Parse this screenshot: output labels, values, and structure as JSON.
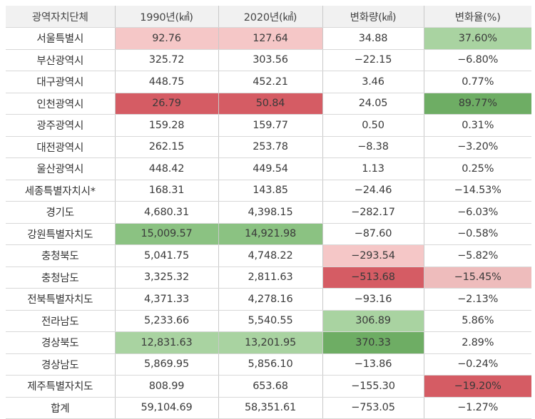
{
  "table": {
    "headers": [
      "광역자치단체",
      "1990년(㎢)",
      "2020년(㎢)",
      "변화량(㎢)",
      "변화율(%)"
    ],
    "rows": [
      {
        "name": "서울특별시",
        "y1990": "92.76",
        "y2020": "127.64",
        "change": "34.88",
        "rate": "37.60%"
      },
      {
        "name": "부산광역시",
        "y1990": "325.72",
        "y2020": "303.56",
        "change": "−22.15",
        "rate": "−6.80%"
      },
      {
        "name": "대구광역시",
        "y1990": "448.75",
        "y2020": "452.21",
        "change": "3.46",
        "rate": "0.77%"
      },
      {
        "name": "인천광역시",
        "y1990": "26.79",
        "y2020": "50.84",
        "change": "24.05",
        "rate": "89.77%"
      },
      {
        "name": "광주광역시",
        "y1990": "159.28",
        "y2020": "159.77",
        "change": "0.50",
        "rate": "0.31%"
      },
      {
        "name": "대전광역시",
        "y1990": "262.15",
        "y2020": "253.78",
        "change": "−8.38",
        "rate": "−3.20%"
      },
      {
        "name": "울산광역시",
        "y1990": "448.42",
        "y2020": "449.54",
        "change": "1.13",
        "rate": "0.25%"
      },
      {
        "name": "세종특별자치시*",
        "y1990": "168.31",
        "y2020": "143.85",
        "change": "−24.46",
        "rate": "−14.53%"
      },
      {
        "name": "경기도",
        "y1990": "4,680.31",
        "y2020": "4,398.15",
        "change": "−282.17",
        "rate": "−6.03%"
      },
      {
        "name": "강원특별자치도",
        "y1990": "15,009.57",
        "y2020": "14,921.98",
        "change": "−87.60",
        "rate": "−0.58%"
      },
      {
        "name": "충청북도",
        "y1990": "5,041.75",
        "y2020": "4,748.22",
        "change": "−293.54",
        "rate": "−5.82%"
      },
      {
        "name": "충청남도",
        "y1990": "3,325.32",
        "y2020": "2,811.63",
        "change": "−513.68",
        "rate": "−15.45%"
      },
      {
        "name": "전북특별자치도",
        "y1990": "4,371.33",
        "y2020": "4,278.16",
        "change": "−93.16",
        "rate": "−2.13%"
      },
      {
        "name": "전라남도",
        "y1990": "5,233.66",
        "y2020": "5,540.55",
        "change": "306.89",
        "rate": "5.86%"
      },
      {
        "name": "경상북도",
        "y1990": "12,831.63",
        "y2020": "13,201.95",
        "change": "370.33",
        "rate": "2.89%"
      },
      {
        "name": "경상남도",
        "y1990": "5,869.95",
        "y2020": "5,856.10",
        "change": "−13.86",
        "rate": "−0.24%"
      },
      {
        "name": "제주특별자치도",
        "y1990": "808.99",
        "y2020": "653.68",
        "change": "−155.30",
        "rate": "−19.20%"
      },
      {
        "name": "합계",
        "y1990": "59,104.69",
        "y2020": "58,351.61",
        "change": "−753.05",
        "rate": "−1.27%"
      }
    ]
  },
  "colors": {
    "header_bg": "#f1f1f1",
    "light_pink": "#f5c7c7",
    "medium_pink": "#eebcbc",
    "strong_red": "#d55c64",
    "light_green": "#a9d3a1",
    "medium_green": "#8bc282",
    "dark_green": "#6ead64"
  }
}
